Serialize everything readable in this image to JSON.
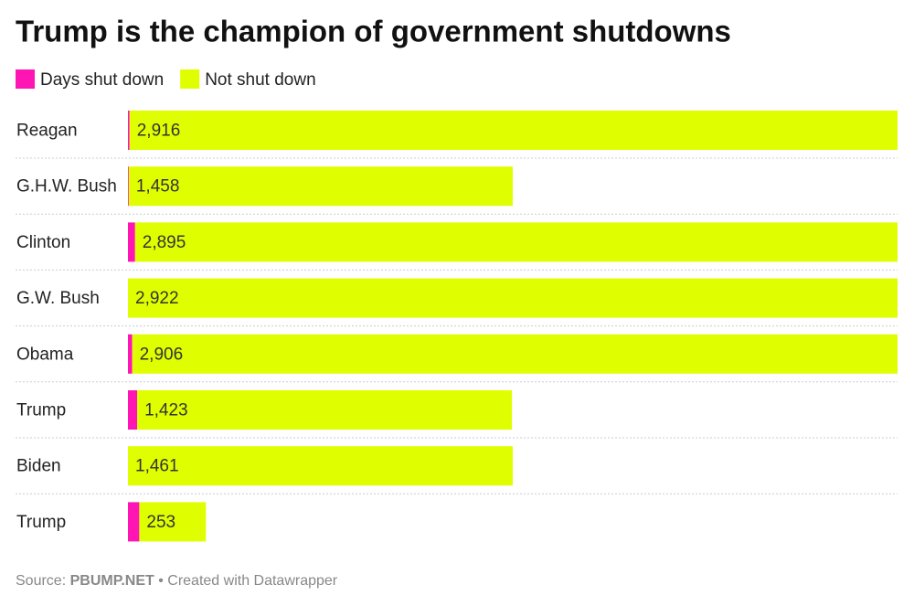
{
  "chart_data": {
    "type": "stacked-bar",
    "title": "Trump is the champion of government shutdowns",
    "categories": [
      "Reagan",
      "G.H.W. Bush",
      "Clinton",
      "G.W. Bush",
      "Obama",
      "Trump",
      "Biden",
      "Trump"
    ],
    "series": [
      {
        "name": "Days shut down",
        "color": "#ff14b4",
        "values": [
          6,
          3,
          27,
          0,
          16,
          35,
          0,
          43
        ]
      },
      {
        "name": "Not shut down",
        "color": "#dfff00",
        "values": [
          2916,
          1458,
          2895,
          2922,
          2906,
          1423,
          1461,
          253
        ],
        "value_labels": [
          "2,916",
          "1,458",
          "2,895",
          "2,922",
          "2,906",
          "1,423",
          "1,461",
          "253"
        ]
      }
    ],
    "source_label": "Source:",
    "source_name": "PBUMP.NET",
    "credit": "• Created with Datawrapper"
  }
}
